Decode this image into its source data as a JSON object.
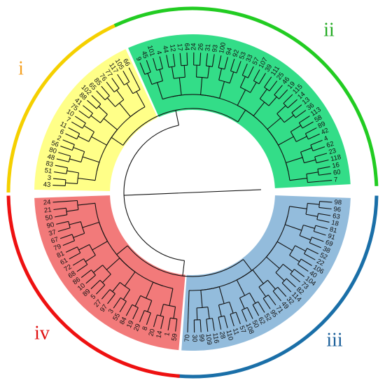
{
  "clusters": [
    {
      "label": "i",
      "color": "#f5d000",
      "label_color": "#f5a020",
      "fill": "#ffff88",
      "leaves": [
        "43",
        "3",
        "51",
        "83",
        "48",
        "80",
        "56",
        "2",
        "6",
        "11",
        "7",
        "10",
        "75",
        "41",
        "88",
        "102",
        "65",
        "85",
        "76",
        "77",
        "117",
        "105",
        "66"
      ]
    },
    {
      "label": "ii",
      "color": "#22cc22",
      "label_color": "#22aa22",
      "fill": "#33dd88",
      "leaves": [
        "9",
        "45",
        "101",
        "4",
        "44",
        "12",
        "17",
        "64",
        "24",
        "26",
        "31",
        "93",
        "100",
        "94",
        "92",
        "53",
        "33",
        "57",
        "107",
        "39",
        "111",
        "25",
        "46",
        "19",
        "115",
        "14",
        "13",
        "36",
        "113",
        "58",
        "89",
        "42",
        "4",
        "62",
        "23",
        "118",
        "16",
        "60",
        "7"
      ]
    },
    {
      "label": "iii",
      "color": "#1a6fa8",
      "label_color": "#1a5f9a",
      "fill": "#93bcdc",
      "leaves": [
        "98",
        "96",
        "63",
        "18",
        "81",
        "91",
        "69",
        "38",
        "52",
        "22",
        "106",
        "40",
        "104",
        "73",
        "82",
        "114",
        "32",
        "49",
        "71",
        "95",
        "52",
        "62",
        "50",
        "108",
        "57",
        "11",
        "110",
        "28",
        "116",
        "109",
        "99",
        "30",
        "70"
      ]
    },
    {
      "label": "iv",
      "color": "#ee1111",
      "label_color": "#e01010",
      "fill": "#f27a7a",
      "leaves": [
        "59",
        "1",
        "14",
        "20",
        "8",
        "29",
        "19",
        "84",
        "55",
        "3",
        "97",
        "27",
        "5",
        "89",
        "10",
        "86",
        "68",
        "72",
        "61",
        "81",
        "79",
        "67",
        "37",
        "90",
        "50",
        "21",
        "24"
      ]
    }
  ]
}
